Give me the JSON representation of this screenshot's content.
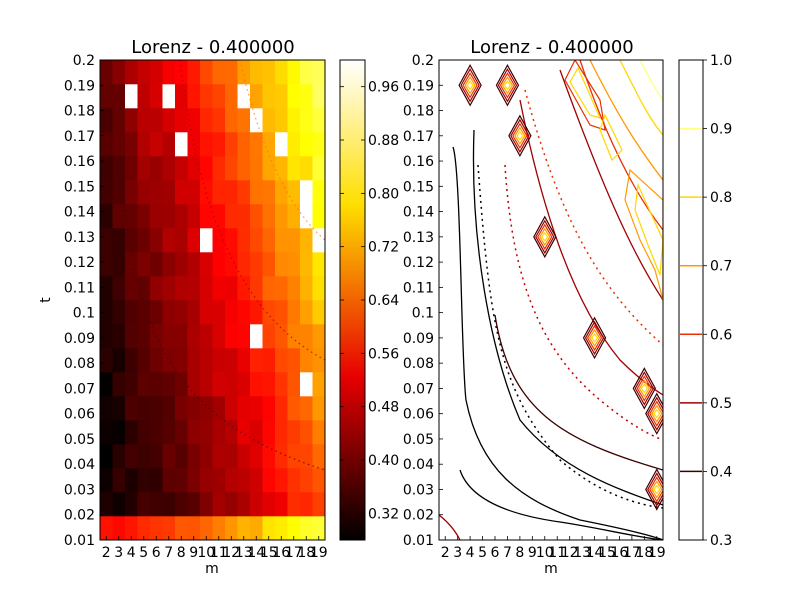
{
  "chart_data": [
    {
      "type": "heatmap",
      "title": "Lorenz - 0.400000",
      "xlabel": "m",
      "ylabel": "t",
      "x": {
        "min": 2,
        "max": 19,
        "step": 1
      },
      "y": {
        "min": 0.01,
        "max": 0.2,
        "step": 0.01
      },
      "x_tick_labels": [
        "2",
        "3",
        "4",
        "5",
        "6",
        "7",
        "8",
        "9",
        "10",
        "11",
        "12",
        "13",
        "14",
        "15",
        "16",
        "17",
        "18",
        "19"
      ],
      "y_tick_labels": [
        "0.01",
        "0.02",
        "0.03",
        "0.04",
        "0.05",
        "0.06",
        "0.07",
        "0.08",
        "0.09",
        "0.1",
        "0.11",
        "0.12",
        "0.13",
        "0.14",
        "0.15",
        "0.16",
        "0.17",
        "0.18",
        "0.19",
        "0.2"
      ],
      "colormap": "hot",
      "colorbar": {
        "min": 0.28,
        "max": 1.0,
        "tick_labels": [
          "0.32",
          "0.40",
          "0.48",
          "0.56",
          "0.64",
          "0.72",
          "0.80",
          "0.88",
          "0.96"
        ]
      },
      "missing_cells": [
        [
          4,
          0.19
        ],
        [
          7,
          0.19
        ],
        [
          13,
          0.19
        ],
        [
          14,
          0.18
        ],
        [
          8,
          0.17
        ],
        [
          16,
          0.17
        ],
        [
          18,
          0.15
        ],
        [
          18,
          0.14
        ],
        [
          10,
          0.13
        ],
        [
          19,
          0.13
        ],
        [
          14,
          0.09
        ],
        [
          18,
          0.07
        ]
      ],
      "grid": false
    },
    {
      "type": "contour",
      "title": "Lorenz - 0.400000",
      "xlabel": "m",
      "ylabel": "",
      "x_tick_labels": [
        "2",
        "3",
        "4",
        "5",
        "6",
        "7",
        "8",
        "9",
        "10",
        "11",
        "12",
        "13",
        "14",
        "15",
        "16",
        "17",
        "18",
        "19"
      ],
      "y_tick_labels": [
        "0.01",
        "0.02",
        "0.03",
        "0.04",
        "0.05",
        "0.06",
        "0.07",
        "0.08",
        "0.09",
        "0.1",
        "0.11",
        "0.12",
        "0.13",
        "0.14",
        "0.15",
        "0.16",
        "0.17",
        "0.18",
        "0.19",
        "0.2"
      ],
      "levels": [
        0.3,
        0.4,
        0.5,
        0.6,
        0.7,
        0.8,
        0.9,
        1.0
      ],
      "legend_tick_labels": [
        "0.3",
        "0.4",
        "0.5",
        "0.6",
        "0.7",
        "0.8",
        "0.9",
        "1.0"
      ],
      "level_colors": {
        "0.3": "#000000",
        "0.4": "#3d0000",
        "0.5": "#a00000",
        "0.6": "#e83000",
        "0.7": "#ff9a00",
        "0.8": "#ffd700",
        "0.9": "#ffff80"
      },
      "diamond_markers": [
        [
          4,
          0.19
        ],
        [
          7,
          0.19
        ],
        [
          8,
          0.17
        ],
        [
          10,
          0.13
        ],
        [
          14,
          0.09
        ],
        [
          18,
          0.07
        ],
        [
          19,
          0.06
        ],
        [
          19,
          0.03
        ]
      ],
      "grid": false
    }
  ]
}
